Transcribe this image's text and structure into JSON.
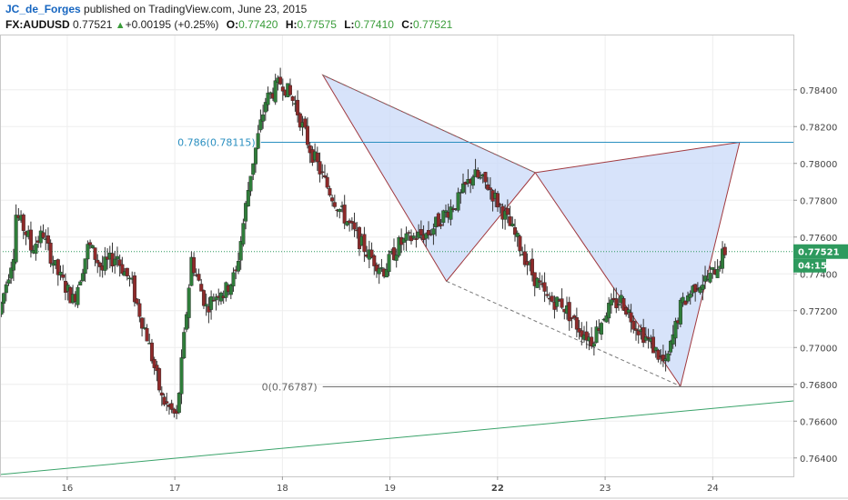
{
  "header": {
    "author": "JC_de_Forges",
    "published_text": " published on TradingView.com, June 23, 2015",
    "symbol": "FX:AUDUSD",
    "last": "0.77521",
    "change": "+0.00195 (+0.25%)",
    "open_label": "O:",
    "open": "0.77420",
    "high_label": "H:",
    "high": "0.77575",
    "low_label": "L:",
    "low": "0.77410",
    "close_label": "C:",
    "close": "0.77521"
  },
  "chart_data": {
    "type": "candlestick",
    "y_ticks": [
      "0.78400",
      "0.78200",
      "0.78000",
      "0.77800",
      "0.77600",
      "0.77400",
      "0.77200",
      "0.77000",
      "0.76800",
      "0.76600",
      "0.76400"
    ],
    "ylim": [
      0.763,
      0.787
    ],
    "x_ticks": [
      {
        "label": "16",
        "pos": 1.5
      },
      {
        "label": "17",
        "pos": 5.5
      },
      {
        "label": "18",
        "pos": 9.5
      },
      {
        "label": "19",
        "pos": 13.5
      },
      {
        "label": "22",
        "pos": 17.5,
        "bold": true
      },
      {
        "label": "23",
        "pos": 21.5
      },
      {
        "label": "24",
        "pos": 25.5
      }
    ],
    "xlim": [
      -1,
      28.5
    ],
    "price_tag": "0.77521",
    "countdown_tag": "04:15",
    "current_price": 0.77521,
    "fib_levels": [
      {
        "label": "0.786(0.78115)",
        "value": 0.78115,
        "color": "#2a8fc0",
        "from": 8.7
      },
      {
        "label": "0(0.76787)",
        "value": 0.76787,
        "color": "#666666",
        "from": 11.0
      }
    ],
    "pattern_points": [
      {
        "x": 11.0,
        "y": 0.7848
      },
      {
        "x": 15.6,
        "y": 0.7736
      },
      {
        "x": 18.9,
        "y": 0.7795
      },
      {
        "x": 24.3,
        "y": 0.7679
      },
      {
        "x": 26.5,
        "y": 0.78115
      }
    ],
    "dashed_lines": [
      [
        {
          "x": 11.0,
          "y": 0.7848
        },
        {
          "x": 18.9,
          "y": 0.7795
        }
      ],
      [
        {
          "x": 15.6,
          "y": 0.7736
        },
        {
          "x": 24.3,
          "y": 0.7679
        }
      ]
    ],
    "trendline": [
      {
        "x": -1,
        "y": 0.7631
      },
      {
        "x": 28.5,
        "y": 0.7671
      }
    ],
    "path": [
      [
        0.7718,
        0.7752
      ],
      [
        0.7775,
        0.776
      ],
      [
        0.7752,
        0.7762
      ],
      [
        0.776,
        0.774
      ],
      [
        0.774,
        0.7726
      ],
      [
        0.7724,
        0.7754
      ],
      [
        0.7757,
        0.7742
      ],
      [
        0.7744,
        0.775
      ],
      [
        0.7748,
        0.7734
      ],
      [
        0.7732,
        0.7706
      ],
      [
        0.7706,
        0.7672
      ],
      [
        0.7672,
        0.7662
      ],
      [
        0.7662,
        0.7748
      ],
      [
        0.7748,
        0.7722
      ],
      [
        0.7722,
        0.7732
      ],
      [
        0.7727,
        0.774
      ],
      [
        0.774,
        0.7795
      ],
      [
        0.7795,
        0.7834
      ],
      [
        0.7834,
        0.7844
      ],
      [
        0.7846,
        0.7832
      ],
      [
        0.7832,
        0.7808
      ],
      [
        0.7808,
        0.779
      ],
      [
        0.779,
        0.7775
      ],
      [
        0.7775,
        0.7762
      ],
      [
        0.7762,
        0.775
      ],
      [
        0.775,
        0.7742
      ],
      [
        0.7742,
        0.7756
      ],
      [
        0.7756,
        0.776
      ],
      [
        0.776,
        0.7762
      ],
      [
        0.7762,
        0.7772
      ],
      [
        0.7772,
        0.778
      ],
      [
        0.778,
        0.7794
      ],
      [
        0.7794,
        0.7788
      ],
      [
        0.7788,
        0.7774
      ],
      [
        0.7774,
        0.7758
      ],
      [
        0.7758,
        0.774
      ],
      [
        0.774,
        0.7726
      ],
      [
        0.7726,
        0.7724
      ],
      [
        0.7724,
        0.7712
      ],
      [
        0.7712,
        0.7704
      ],
      [
        0.7704,
        0.772
      ],
      [
        0.772,
        0.7726
      ],
      [
        0.7726,
        0.7712
      ],
      [
        0.7712,
        0.7702
      ],
      [
        0.7702,
        0.769
      ],
      [
        0.769,
        0.7722
      ],
      [
        0.7722,
        0.7734
      ],
      [
        0.7734,
        0.7738
      ],
      [
        0.7738,
        0.7752
      ]
    ]
  }
}
